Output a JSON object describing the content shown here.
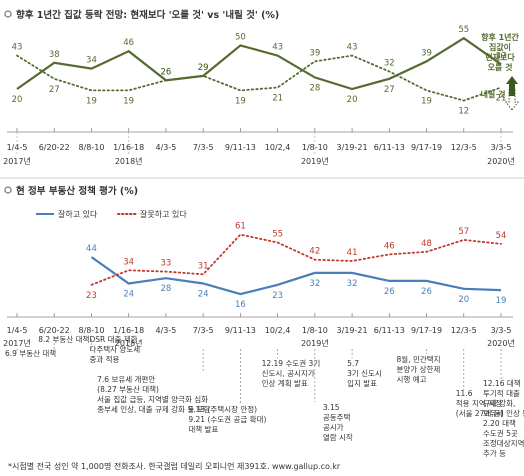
{
  "chart_data": [
    {
      "type": "line",
      "title": "향후 1년간 집값 등락 전망: 현재보다 '오를 것' vs '내릴 것' (%)",
      "x": [
        "1/4-5",
        "6/20-22",
        "8/8-10",
        "1/16-18",
        "4/3-5",
        "7/3-5",
        "9/11-13",
        "10/2,4",
        "1/8-10",
        "3/19-21",
        "6/11-13",
        "9/17-19",
        "12/3-5",
        "3/3-5"
      ],
      "years": [
        {
          "label": "2017년",
          "at": 0
        },
        {
          "label": "2018년",
          "at": 3
        },
        {
          "label": "2019년",
          "at": 8
        },
        {
          "label": "2020년",
          "at": 13
        }
      ],
      "series": [
        {
          "name": "향후 1년간 집값이 현재보다 오를 것",
          "color": "#556b2f",
          "style": "solid",
          "values": [
            20,
            38,
            34,
            46,
            26,
            29,
            50,
            43,
            28,
            20,
            27,
            39,
            55,
            37
          ]
        },
        {
          "name": "내릴 것",
          "color": "#556b2f",
          "style": "dotted",
          "values": [
            43,
            27,
            19,
            19,
            26,
            29,
            19,
            21,
            39,
            43,
            32,
            19,
            12,
            21
          ]
        }
      ],
      "ylim": [
        0,
        62
      ]
    },
    {
      "type": "line",
      "title": "현 정부 부동산 정책 평가 (%)",
      "x": [
        "1/4-5",
        "6/20-22",
        "8/8-10",
        "1/16-18",
        "4/3-5",
        "7/3-5",
        "9/11-13",
        "10/2,4",
        "1/8-10",
        "3/19-21",
        "6/11-13",
        "9/17-19",
        "12/3-5",
        "3/3-5"
      ],
      "years": [
        {
          "label": "2017년",
          "at": 0
        },
        {
          "label": "2018년",
          "at": 3
        },
        {
          "label": "2019년",
          "at": 8
        },
        {
          "label": "2020년",
          "at": 13
        }
      ],
      "legend": [
        "잘하고 있다",
        "잘못하고 있다"
      ],
      "series": [
        {
          "name": "잘하고 있다",
          "color": "#4a7ebb",
          "style": "solid",
          "values": [
            null,
            null,
            44,
            24,
            28,
            24,
            16,
            23,
            32,
            32,
            26,
            26,
            20,
            19
          ]
        },
        {
          "name": "잘못하고 있다",
          "color": "#c0392b",
          "style": "dotted",
          "values": [
            null,
            null,
            23,
            34,
            33,
            31,
            61,
            55,
            42,
            41,
            46,
            48,
            57,
            54
          ]
        }
      ],
      "ylim": [
        10,
        66
      ],
      "annotations": [
        {
          "at": 0,
          "lines": [
            "6.9 부동산 대책"
          ]
        },
        {
          "at": 1,
          "lines": [
            "8.2 부동산 대책"
          ]
        },
        {
          "at": 2,
          "lines": [
            "DSR 대출 제한",
            "다주택자 양도세",
            "중과 적용"
          ]
        },
        {
          "at": 5,
          "lines": [
            "7.6 보유세 개편안",
            "(8.27 부동산 대책)",
            "서울 집값 급등, 지역별 양극화 심화",
            "종부세 인상, 대출 규제 강화 등 포함"
          ]
        },
        {
          "at": 6,
          "lines": [
            "9.13 (주택시장 안정)",
            "9.21 (수도권 공급 확대)",
            "대책 발표"
          ]
        },
        {
          "at": 7,
          "lines": [
            "12.19 수도권 3기",
            "신도시, 공시지가",
            "인상 계획 발표"
          ]
        },
        {
          "at": 8,
          "lines": [
            "3.15",
            "공동주택",
            "공시가",
            "열람 시작"
          ]
        },
        {
          "at": 9,
          "lines": [
            "5.7",
            "3기 신도시",
            "입지 발표"
          ]
        },
        {
          "at": 11,
          "lines": [
            "8월, 민간택지",
            "분양가 상한제",
            "시행 예고"
          ]
        },
        {
          "at": 12,
          "lines": [
            "11.6",
            "적용 지역 지정",
            "(서울 27개 동)"
          ]
        },
        {
          "at": 13,
          "lines": [
            "12.16 대책",
            "투기적 대출",
            "규제 강화,",
            "보유세 인상 등",
            "2.20 대책",
            "수도권 5곳",
            "조정대상지역",
            "추가 등"
          ]
        }
      ]
    }
  ],
  "side_labels": {
    "up_label": [
      "향후 1년간",
      "집값이",
      "현재보다",
      "오를 것"
    ],
    "down_label": "내릴 것"
  },
  "footer": "*시점별 전국 성인 약 1,000명 전화조사. 한국갤럽 데일리 오피니언 제391호. www.gallup.co.kr"
}
